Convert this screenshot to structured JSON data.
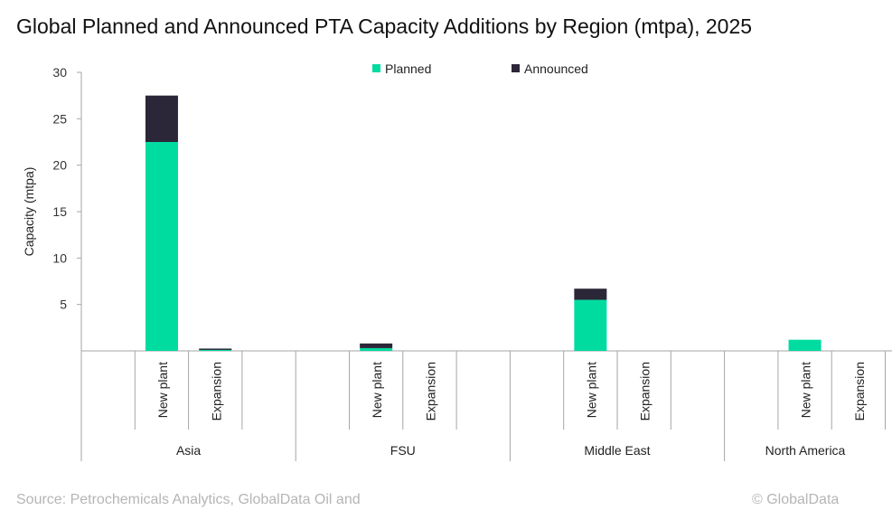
{
  "chart_data": {
    "type": "bar",
    "stacked": true,
    "title": "Global Planned and Announced PTA Capacity Additions by Region (mtpa), 2025",
    "ylabel": "Capacity (mtpa)",
    "xlabel": "",
    "ylim": [
      0,
      30
    ],
    "yticks": [
      5,
      10,
      15,
      20,
      25,
      30
    ],
    "grid": false,
    "legend": "top",
    "groups": [
      {
        "name": "Asia",
        "categories": [
          "New plant",
          "Expansion"
        ]
      },
      {
        "name": "FSU",
        "categories": [
          "New plant",
          "Expansion"
        ]
      },
      {
        "name": "Middle East",
        "categories": [
          "New plant",
          "Expansion"
        ]
      },
      {
        "name": "North America",
        "categories": [
          "New plant",
          "Expansion"
        ]
      }
    ],
    "series": [
      {
        "name": "Planned",
        "color": "#00dba0",
        "values": [
          [
            22.5,
            0.2
          ],
          [
            0.3,
            0
          ],
          [
            5.5,
            0
          ],
          [
            1.2,
            0
          ]
        ]
      },
      {
        "name": "Announced",
        "color": "#2b2638",
        "values": [
          [
            5.0,
            0.05
          ],
          [
            0.5,
            0
          ],
          [
            1.2,
            0
          ],
          [
            0,
            0
          ]
        ]
      }
    ]
  },
  "footer": {
    "source": "Source: Petrochemicals Analytics, GlobalData Oil and",
    "copyright": "© GlobalData"
  }
}
